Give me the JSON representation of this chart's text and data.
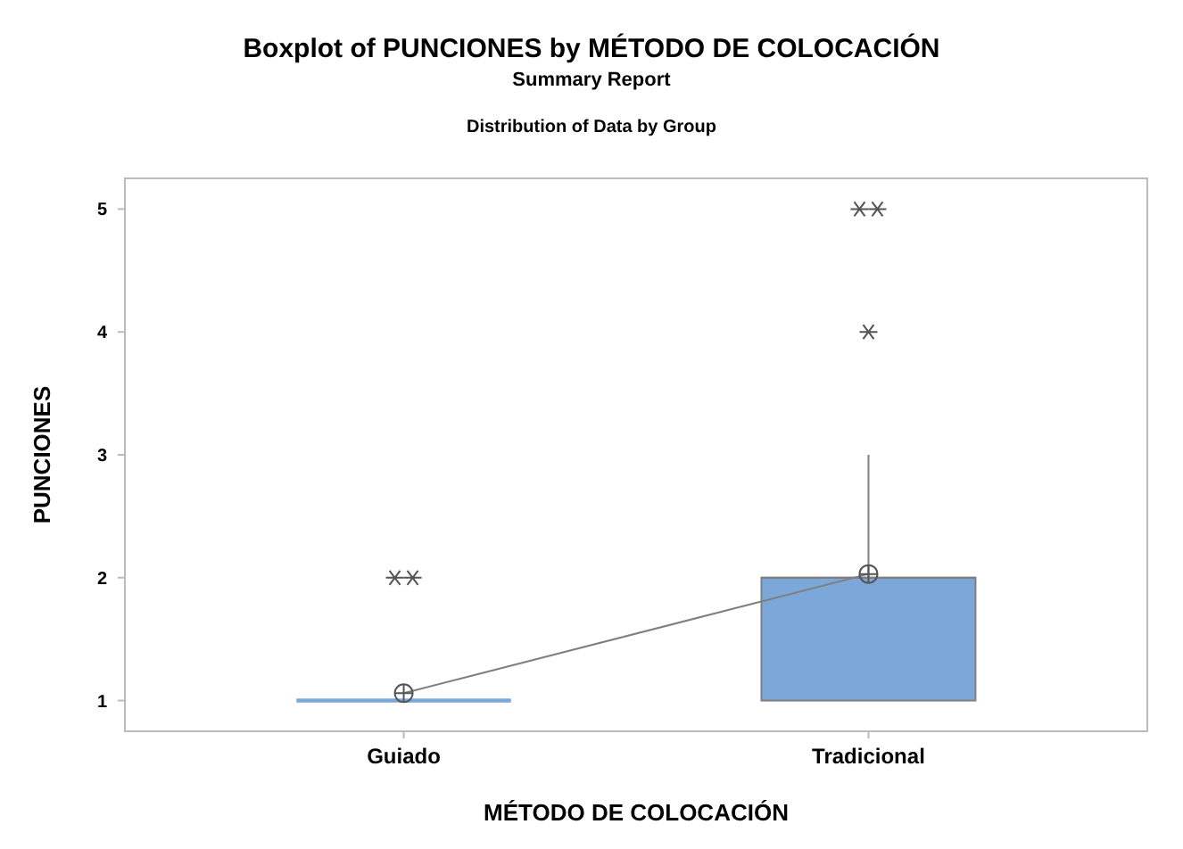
{
  "chart_data": {
    "type": "box",
    "title": "Boxplot of PUNCIONES by MÉTODO DE COLOCACIÓN",
    "subtitle": "Summary Report",
    "annotations": [
      "Distribution of Data by Group"
    ],
    "xlabel": "MÉTODO DE COLOCACIÓN",
    "ylabel": "PUNCIONES",
    "categories": [
      "Guiado",
      "Tradicional"
    ],
    "color": "#7ba7d9",
    "boxes": [
      {
        "low": 1,
        "q1": 1,
        "median": 1,
        "q3": 1,
        "high": 1,
        "mean": 1.06,
        "outliers": [
          2,
          2
        ]
      },
      {
        "low": 1,
        "q1": 1,
        "median": 2,
        "q3": 2,
        "high": 3,
        "mean": 2.03,
        "outliers": [
          4,
          5,
          5
        ]
      }
    ],
    "series": [
      {
        "type": "line",
        "color": "#7f7f7f",
        "values": [
          1.06,
          2.03
        ]
      }
    ],
    "ylim": [
      0.75,
      5.25
    ],
    "yticks": [
      1,
      2,
      3,
      4,
      5
    ],
    "grid": false
  }
}
